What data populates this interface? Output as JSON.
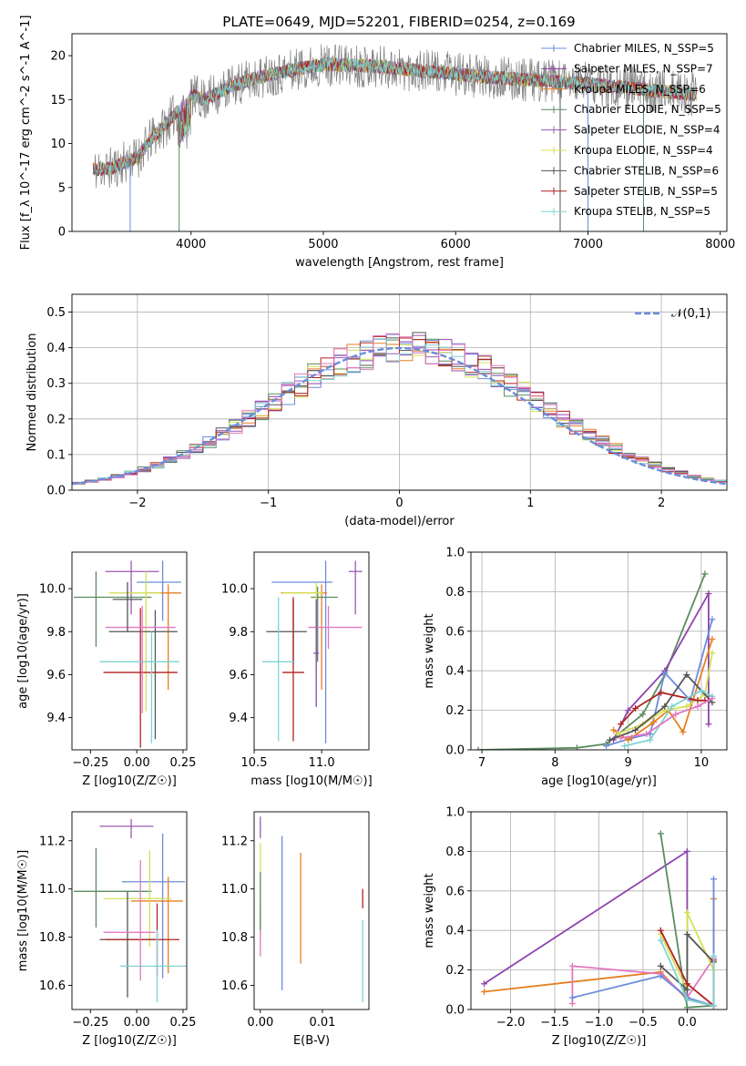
{
  "figure": {
    "title": "PLATE=0649, MJD=52201, FIBERID=0254, z=0.169"
  },
  "colors": [
    "#6b8cdc",
    "#8e44ad",
    "#e67e22",
    "#5b8c5f",
    "#9b59b6",
    "#d4e157",
    "#555555",
    "#b22222",
    "#7fd3d3",
    "#e377c2"
  ],
  "chart_data": [
    {
      "id": "spectrum",
      "type": "line",
      "title": "PLATE=0649, MJD=52201, FIBERID=0254, z=0.169",
      "xlabel": "wavelength [Angstrom, rest frame]",
      "ylabel": "Flux [f_λ 10^-17 erg cm^-2 s^-1 A^-1]",
      "xlim": [
        3100,
        8050
      ],
      "ylim": [
        0,
        22.5
      ],
      "xticks": [
        4000,
        5000,
        6000,
        7000,
        8000
      ],
      "yticks": [
        0,
        5,
        10,
        15,
        20
      ],
      "grid": false,
      "legend_position": "top-right",
      "data_wavelength_range": [
        3260,
        7820
      ],
      "series": [
        {
          "name": "Chabrier MILES, N_SSP=5",
          "color": "#6b8cdc"
        },
        {
          "name": "Salpeter MILES, N_SSP=7",
          "color": "#8e44ad"
        },
        {
          "name": "Kroupa MILES, N_SSP=6",
          "color": "#e67e22"
        },
        {
          "name": "Chabrier ELODIE, N_SSP=5",
          "color": "#5b8c5f"
        },
        {
          "name": "Salpeter ELODIE, N_SSP=4",
          "color": "#9b59b6"
        },
        {
          "name": "Kroupa ELODIE, N_SSP=4",
          "color": "#d4e157"
        },
        {
          "name": "Chabrier STELIB, N_SSP=6",
          "color": "#555555"
        },
        {
          "name": "Salpeter STELIB, N_SSP=5",
          "color": "#b22222"
        },
        {
          "name": "Kroupa STELIB, N_SSP=5",
          "color": "#7fd3d3"
        }
      ],
      "continuum": {
        "x": [
          3260,
          3400,
          3600,
          3700,
          3800,
          4000,
          4100,
          4300,
          4500,
          4800,
          5000,
          5400,
          5800,
          6200,
          6600,
          7000,
          7400,
          7800
        ],
        "y": [
          7.0,
          7.2,
          8.5,
          10.5,
          12.0,
          15.5,
          15.0,
          16.5,
          17.5,
          18.5,
          19.0,
          18.8,
          18.2,
          17.6,
          17.2,
          16.8,
          16.2,
          15.6
        ]
      }
    },
    {
      "id": "residuals",
      "type": "line",
      "xlabel": "(data-model)/error",
      "ylabel": "Normed distribution",
      "xlim": [
        -2.5,
        2.5
      ],
      "ylim": [
        0,
        0.55
      ],
      "xticks": [
        -2,
        -1,
        0,
        1,
        2
      ],
      "yticks": [
        0.0,
        0.1,
        0.2,
        0.3,
        0.4,
        0.5
      ],
      "grid": true,
      "legend_position": "top-right",
      "reference_curve": {
        "name": "𝒩(0,1)",
        "color": "#6b8cdc",
        "mean": 0,
        "sigma": 1
      },
      "histogram": {
        "bin_width": 0.1,
        "x_start": -2.5,
        "x_end": 2.5
      }
    },
    {
      "id": "age-vs-Z",
      "type": "scatter",
      "xlabel": "Z [log10(Z/Z☉)]",
      "ylabel": "age [log10(age/yr)]",
      "xlim": [
        -0.35,
        0.27
      ],
      "ylim": [
        9.25,
        10.17
      ],
      "xticks": [
        -0.25,
        0.0,
        0.25
      ],
      "yticks": [
        9.4,
        9.6,
        9.8,
        10.0
      ],
      "grid": false,
      "points": [
        {
          "x": 0.14,
          "y": 10.03,
          "xerr": [
            0.14,
            0.1
          ],
          "yerr": [
            0.18,
            0.1
          ],
          "color": "#6b8cdc"
        },
        {
          "x": -0.03,
          "y": 10.08,
          "xerr": [
            0.14,
            0.15
          ],
          "yerr": [
            0.2,
            0.05
          ],
          "color": "#9b59b6"
        },
        {
          "x": 0.17,
          "y": 9.98,
          "xerr": [
            0.12,
            0.07
          ],
          "yerr": [
            0.45,
            0.04
          ],
          "color": "#e67e22"
        },
        {
          "x": -0.22,
          "y": 9.96,
          "xerr": [
            0.12,
            0.3
          ],
          "yerr": [
            0.23,
            0.12
          ],
          "color": "#5b8c5f"
        },
        {
          "x": 0.05,
          "y": 9.98,
          "xerr": [
            0.2,
            0.08
          ],
          "yerr": [
            0.55,
            0.1
          ],
          "color": "#d4e157"
        },
        {
          "x": 0.1,
          "y": 9.8,
          "xerr": [
            0.25,
            0.12
          ],
          "yerr": [
            0.5,
            0.1
          ],
          "color": "#555555"
        },
        {
          "x": 0.02,
          "y": 9.61,
          "xerr": [
            0.2,
            0.2
          ],
          "yerr": [
            0.35,
            0.3
          ],
          "color": "#b22222"
        },
        {
          "x": 0.08,
          "y": 9.66,
          "xerr": [
            0.28,
            0.15
          ],
          "yerr": [
            0.38,
            0.14
          ],
          "color": "#7fd3d3"
        },
        {
          "x": 0.03,
          "y": 9.82,
          "xerr": [
            0.2,
            0.18
          ],
          "yerr": [
            0.4,
            0.1
          ],
          "color": "#e377c2"
        },
        {
          "x": -0.05,
          "y": 9.95,
          "xerr": [
            0.08,
            0.08
          ],
          "yerr": [
            0.15,
            0.08
          ],
          "color": "#555555"
        }
      ]
    },
    {
      "id": "age-vs-mass",
      "type": "scatter",
      "xlabel": "mass [log10(M/M☉)]",
      "ylabel": "",
      "xlim": [
        10.5,
        11.35
      ],
      "ylim": [
        9.25,
        10.17
      ],
      "xticks": [
        10.5,
        11.0
      ],
      "yticks": [
        9.4,
        9.6,
        9.8,
        10.0
      ],
      "grid": false,
      "points": [
        {
          "x": 11.03,
          "y": 10.03,
          "xerr": [
            0.4,
            0.05
          ],
          "yerr": [
            0.75,
            0.1
          ],
          "color": "#6b8cdc"
        },
        {
          "x": 11.25,
          "y": 10.08,
          "xerr": [
            0.05,
            0.05
          ],
          "yerr": [
            0.2,
            0.05
          ],
          "color": "#9b59b6"
        },
        {
          "x": 11.0,
          "y": 9.98,
          "xerr": [
            0.3,
            0.04
          ],
          "yerr": [
            0.45,
            0.04
          ],
          "color": "#e67e22"
        },
        {
          "x": 10.97,
          "y": 9.96,
          "xerr": [
            0.05,
            0.15
          ],
          "yerr": [
            0.3,
            0.05
          ],
          "color": "#5b8c5f"
        },
        {
          "x": 10.96,
          "y": 9.98,
          "xerr": [
            0.25,
            0.05
          ],
          "yerr": [
            0.4,
            0.05
          ],
          "color": "#d4e157"
        },
        {
          "x": 10.79,
          "y": 9.8,
          "xerr": [
            0.2,
            0.1
          ],
          "yerr": [
            0.15,
            0.15
          ],
          "color": "#555555"
        },
        {
          "x": 10.79,
          "y": 9.61,
          "xerr": [
            0.08,
            0.08
          ],
          "yerr": [
            0.32,
            0.35
          ],
          "color": "#b22222"
        },
        {
          "x": 10.68,
          "y": 9.66,
          "xerr": [
            0.12,
            0.12
          ],
          "yerr": [
            0.37,
            0.3
          ],
          "color": "#7fd3d3"
        },
        {
          "x": 11.05,
          "y": 9.82,
          "xerr": [
            0.15,
            0.25
          ],
          "yerr": [
            0.1,
            0.1
          ],
          "color": "#e377c2"
        },
        {
          "x": 10.96,
          "y": 9.7,
          "xerr": [
            0.02,
            0.02
          ],
          "yerr": [
            0.25,
            0.25
          ],
          "color": "#8e44ad"
        }
      ]
    },
    {
      "id": "weight-vs-age",
      "type": "line",
      "xlabel": "age [log10(age/yr)]",
      "ylabel": "mass weight",
      "xlim": [
        6.85,
        10.35
      ],
      "ylim": [
        0,
        1.0
      ],
      "xticks": [
        7,
        8,
        9,
        10
      ],
      "yticks": [
        0.0,
        0.2,
        0.4,
        0.6,
        0.8,
        1.0
      ],
      "grid": true,
      "series": [
        {
          "color": "#5b8c5f",
          "x": [
            6.95,
            8.3,
            8.7,
            9.2,
            9.5,
            10.05
          ],
          "y": [
            0.0,
            0.01,
            0.03,
            0.18,
            0.38,
            0.89
          ]
        },
        {
          "color": "#8e44ad",
          "x": [
            8.8,
            9.0,
            9.5,
            10.1,
            10.1
          ],
          "y": [
            0.05,
            0.2,
            0.4,
            0.79,
            0.13
          ]
        },
        {
          "color": "#6b8cdc",
          "x": [
            8.7,
            9.05,
            9.3,
            9.5,
            9.85,
            10.15
          ],
          "y": [
            0.02,
            0.06,
            0.08,
            0.39,
            0.25,
            0.66
          ]
        },
        {
          "color": "#e67e22",
          "x": [
            8.8,
            9.0,
            9.35,
            9.55,
            9.75,
            10.15
          ],
          "y": [
            0.1,
            0.05,
            0.14,
            0.2,
            0.09,
            0.56
          ]
        },
        {
          "color": "#d4e157",
          "x": [
            8.85,
            9.2,
            9.5,
            9.8,
            10.05,
            10.15
          ],
          "y": [
            0.08,
            0.13,
            0.2,
            0.22,
            0.28,
            0.49
          ]
        },
        {
          "color": "#555555",
          "x": [
            8.75,
            9.1,
            9.5,
            9.8,
            10.15
          ],
          "y": [
            0.05,
            0.1,
            0.22,
            0.38,
            0.24
          ]
        },
        {
          "color": "#b22222",
          "x": [
            8.9,
            9.1,
            9.45,
            9.95,
            10.05
          ],
          "y": [
            0.13,
            0.21,
            0.29,
            0.25,
            0.25
          ]
        },
        {
          "color": "#7fd3d3",
          "x": [
            8.95,
            9.3,
            9.6,
            10.0,
            10.15
          ],
          "y": [
            0.02,
            0.05,
            0.22,
            0.3,
            0.27
          ]
        },
        {
          "color": "#e377c2",
          "x": [
            8.9,
            9.25,
            9.65,
            9.95,
            10.15
          ],
          "y": [
            0.06,
            0.08,
            0.18,
            0.22,
            0.26
          ]
        }
      ]
    },
    {
      "id": "mass-vs-Z",
      "type": "scatter",
      "xlabel": "Z [log10(Z/Z☉)]",
      "ylabel": "mass [log10(M/M☉)]",
      "xlim": [
        -0.35,
        0.27
      ],
      "ylim": [
        10.5,
        11.32
      ],
      "xticks": [
        -0.25,
        0.0,
        0.25
      ],
      "yticks": [
        10.6,
        10.8,
        11.0,
        11.2
      ],
      "grid": false,
      "points": [
        {
          "x": 0.14,
          "y": 11.03,
          "xerr": [
            0.22,
            0.12
          ],
          "yerr": [
            0.4,
            0.2
          ],
          "color": "#6b8cdc"
        },
        {
          "x": -0.03,
          "y": 11.26,
          "xerr": [
            0.17,
            0.12
          ],
          "yerr": [
            0.05,
            0.03
          ],
          "color": "#9b59b6"
        },
        {
          "x": 0.17,
          "y": 10.95,
          "xerr": [
            0.2,
            0.08
          ],
          "yerr": [
            0.3,
            0.1
          ],
          "color": "#e67e22"
        },
        {
          "x": -0.22,
          "y": 10.99,
          "xerr": [
            0.12,
            0.3
          ],
          "yerr": [
            0.15,
            0.18
          ],
          "color": "#5b8c5f"
        },
        {
          "x": 0.07,
          "y": 10.96,
          "xerr": [
            0.25,
            0.12
          ],
          "yerr": [
            0.2,
            0.2
          ],
          "color": "#d4e157"
        },
        {
          "x": -0.05,
          "y": 10.79,
          "xerr": [
            0.15,
            0.15
          ],
          "yerr": [
            0.24,
            0.2
          ],
          "color": "#555555"
        },
        {
          "x": 0.11,
          "y": 10.79,
          "xerr": [
            0.28,
            0.12
          ],
          "yerr": [
            0.15,
            0.15
          ],
          "color": "#b22222"
        },
        {
          "x": 0.11,
          "y": 10.68,
          "xerr": [
            0.2,
            0.16
          ],
          "yerr": [
            0.15,
            0.15
          ],
          "color": "#7fd3d3"
        },
        {
          "x": 0.02,
          "y": 10.82,
          "xerr": [
            0.2,
            0.08
          ],
          "yerr": [
            0.2,
            0.3
          ],
          "color": "#e377c2"
        }
      ]
    },
    {
      "id": "mass-vs-ebv",
      "type": "scatter",
      "xlabel": "E(B-V)",
      "ylabel": "",
      "xlim": [
        -0.001,
        0.0175
      ],
      "ylim": [
        10.5,
        11.32
      ],
      "xticks": [
        0.0,
        0.01
      ],
      "yticks": [
        10.6,
        10.8,
        11.0,
        11.2
      ],
      "grid": false,
      "points": [
        {
          "x": 0.0,
          "y": 11.26,
          "yerr": [
            0.05,
            0.04
          ],
          "color": "#9b59b6"
        },
        {
          "x": 0.0,
          "y": 10.99,
          "yerr": [
            0.2,
            0.2
          ],
          "color": "#d4e157"
        },
        {
          "x": 0.0,
          "y": 10.82,
          "yerr": [
            0.1,
            0.1
          ],
          "color": "#e377c2"
        },
        {
          "x": 0.0,
          "y": 10.95,
          "yerr": [
            0.12,
            0.12
          ],
          "color": "#5b8c5f"
        },
        {
          "x": 0.0035,
          "y": 10.9,
          "yerr": [
            0.32,
            0.32
          ],
          "color": "#6b8cdc"
        },
        {
          "x": 0.0065,
          "y": 10.95,
          "yerr": [
            0.26,
            0.2
          ],
          "color": "#e67e22"
        },
        {
          "x": 0.0165,
          "y": 10.97,
          "yerr": [
            0.05,
            0.03
          ],
          "color": "#b22222"
        },
        {
          "x": 0.0165,
          "y": 10.7,
          "yerr": [
            0.17,
            0.17
          ],
          "color": "#7fd3d3"
        }
      ]
    },
    {
      "id": "weight-vs-Z",
      "type": "line",
      "xlabel": "Z [log10(Z/Z☉)]",
      "ylabel": "mass weight",
      "xlim": [
        -2.45,
        0.45
      ],
      "ylim": [
        0,
        1.0
      ],
      "xticks": [
        -2.0,
        -1.5,
        -1.0,
        -0.5,
        0.0
      ],
      "yticks": [
        0.0,
        0.2,
        0.4,
        0.6,
        0.8,
        1.0
      ],
      "grid": true,
      "series": [
        {
          "color": "#8e44ad",
          "x": [
            -2.3,
            0.0,
            0.0,
            0.3
          ],
          "y": [
            0.13,
            0.8,
            0.05,
            0.02
          ]
        },
        {
          "color": "#e67e22",
          "x": [
            -2.3,
            -0.3,
            0.0,
            0.3,
            0.3
          ],
          "y": [
            0.09,
            0.19,
            0.05,
            0.02,
            0.56
          ]
        },
        {
          "color": "#e377c2",
          "x": [
            -1.3,
            -1.3,
            -0.3,
            0.0,
            0.3
          ],
          "y": [
            0.03,
            0.22,
            0.18,
            0.06,
            0.26
          ]
        },
        {
          "color": "#6b8cdc",
          "x": [
            -1.3,
            -0.3,
            0.0,
            0.3,
            0.3
          ],
          "y": [
            0.06,
            0.17,
            0.06,
            0.02,
            0.66
          ]
        },
        {
          "color": "#5b8c5f",
          "x": [
            -0.3,
            0.0,
            0.3
          ],
          "y": [
            0.89,
            0.01,
            0.02
          ]
        },
        {
          "color": "#d4e157",
          "x": [
            -0.3,
            0.0,
            0.0,
            0.3
          ],
          "y": [
            0.38,
            0.1,
            0.49,
            0.2
          ]
        },
        {
          "color": "#555555",
          "x": [
            -0.3,
            0.0,
            0.0,
            0.3
          ],
          "y": [
            0.22,
            0.1,
            0.38,
            0.24
          ]
        },
        {
          "color": "#b22222",
          "x": [
            -0.3,
            0.0,
            0.3,
            0.3
          ],
          "y": [
            0.4,
            0.13,
            0.02,
            0.25
          ]
        },
        {
          "color": "#7fd3d3",
          "x": [
            -0.3,
            0.0,
            0.3,
            0.3
          ],
          "y": [
            0.35,
            0.05,
            0.02,
            0.27
          ]
        }
      ]
    }
  ]
}
